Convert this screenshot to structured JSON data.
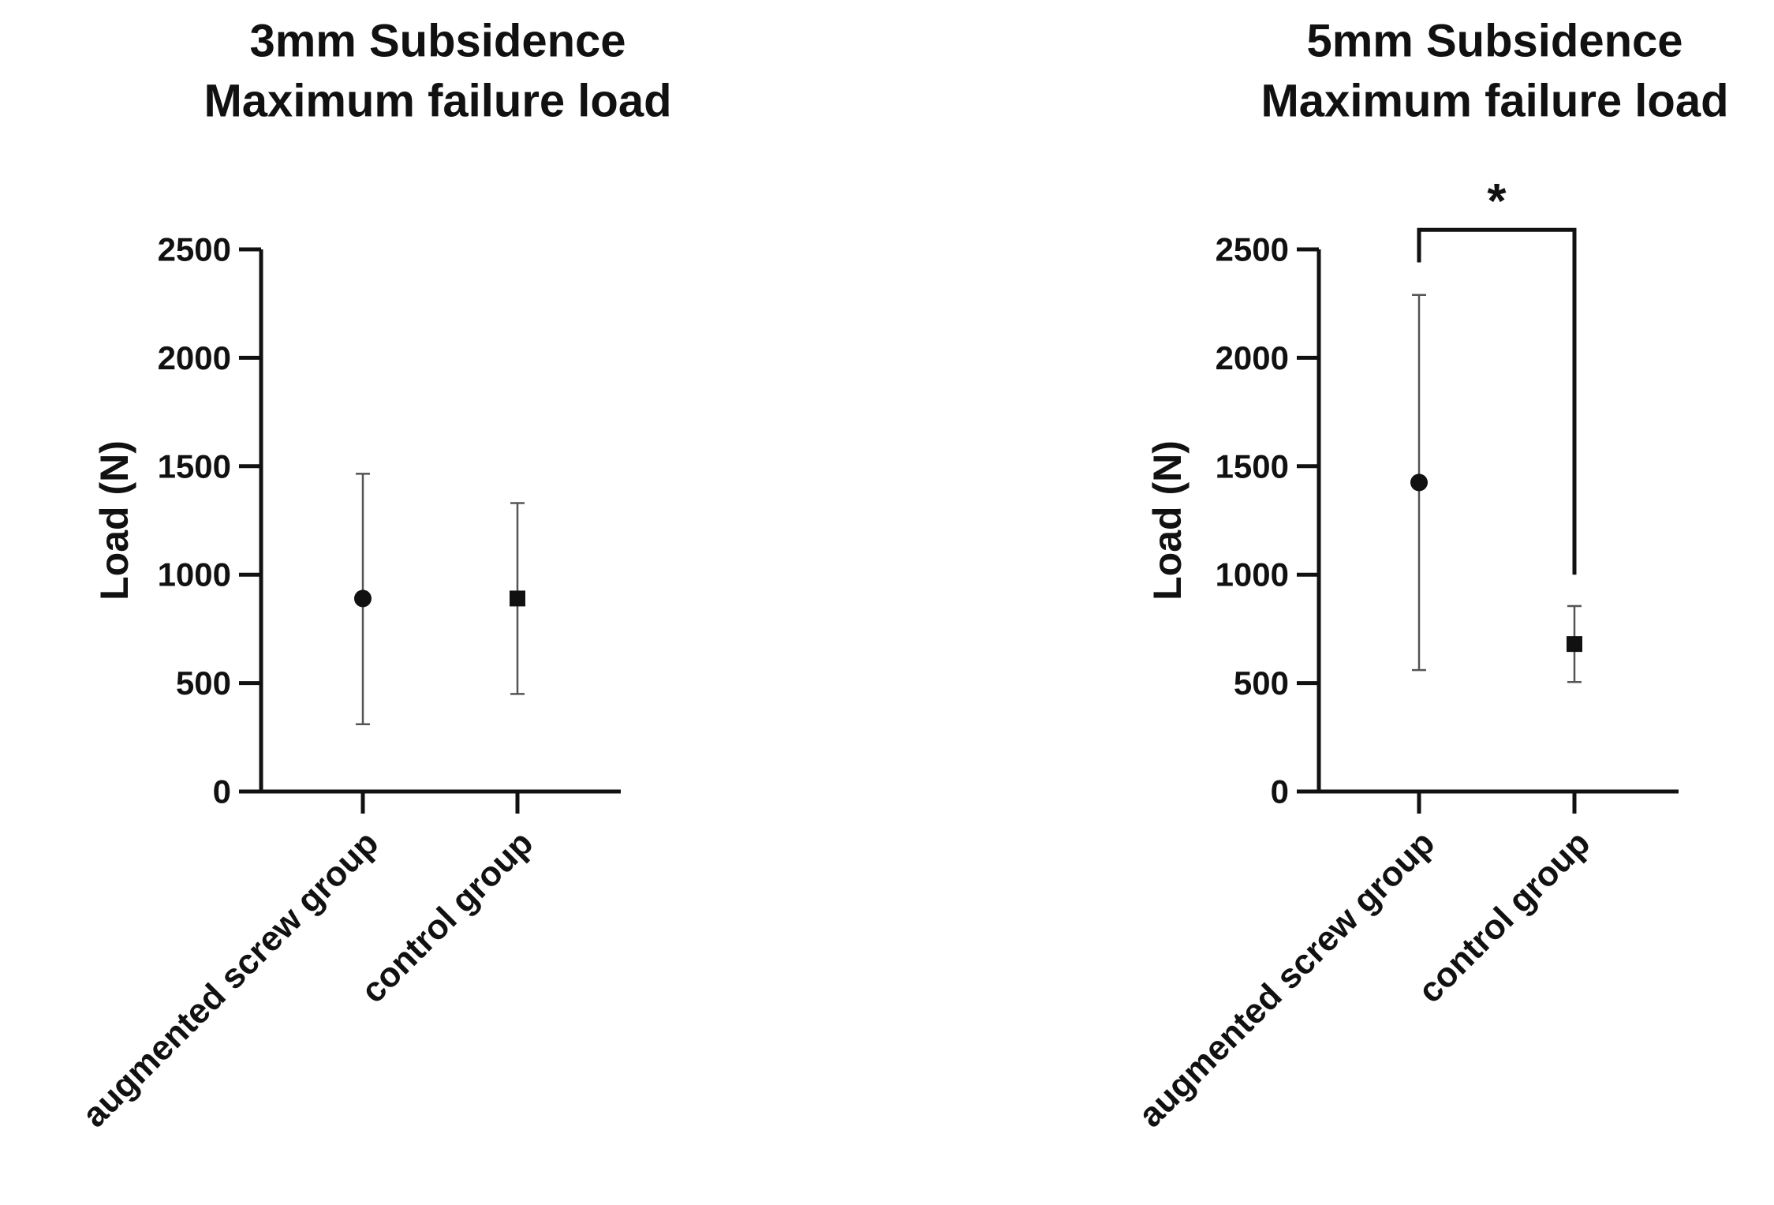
{
  "chart_data": [
    {
      "type": "scatter",
      "title": [
        "3mm Subsidence",
        "Maximum failure load"
      ],
      "ylabel": "Load (N)",
      "ylim": [
        0,
        2500
      ],
      "yticks": [
        0,
        500,
        1000,
        1500,
        2000,
        2500
      ],
      "categories": [
        "augmented screw group",
        "control group"
      ],
      "points": [
        {
          "category": "augmented screw group",
          "mean": 890,
          "error_low": 310,
          "error_high": 1465,
          "marker": "circle"
        },
        {
          "category": "control group",
          "mean": 890,
          "error_low": 450,
          "error_high": 1330,
          "marker": "square"
        }
      ],
      "significance": null
    },
    {
      "type": "scatter",
      "title": [
        "5mm Subsidence",
        "Maximum failure load"
      ],
      "ylabel": "Load (N)",
      "ylim": [
        0,
        2500
      ],
      "yticks": [
        0,
        500,
        1000,
        1500,
        2000,
        2500
      ],
      "categories": [
        "augmented screw group",
        "control group"
      ],
      "points": [
        {
          "category": "augmented screw group",
          "mean": 1425,
          "error_low": 560,
          "error_high": 2290,
          "marker": "circle"
        },
        {
          "category": "control group",
          "mean": 680,
          "error_low": 505,
          "error_high": 855,
          "marker": "square"
        }
      ],
      "significance": {
        "label": "*",
        "between": [
          "augmented screw group",
          "control group"
        ],
        "left_end": 2440,
        "top": 2590,
        "right_end": 1000
      }
    }
  ],
  "colors": {
    "ink": "#111111",
    "errorbar": "#555555"
  }
}
